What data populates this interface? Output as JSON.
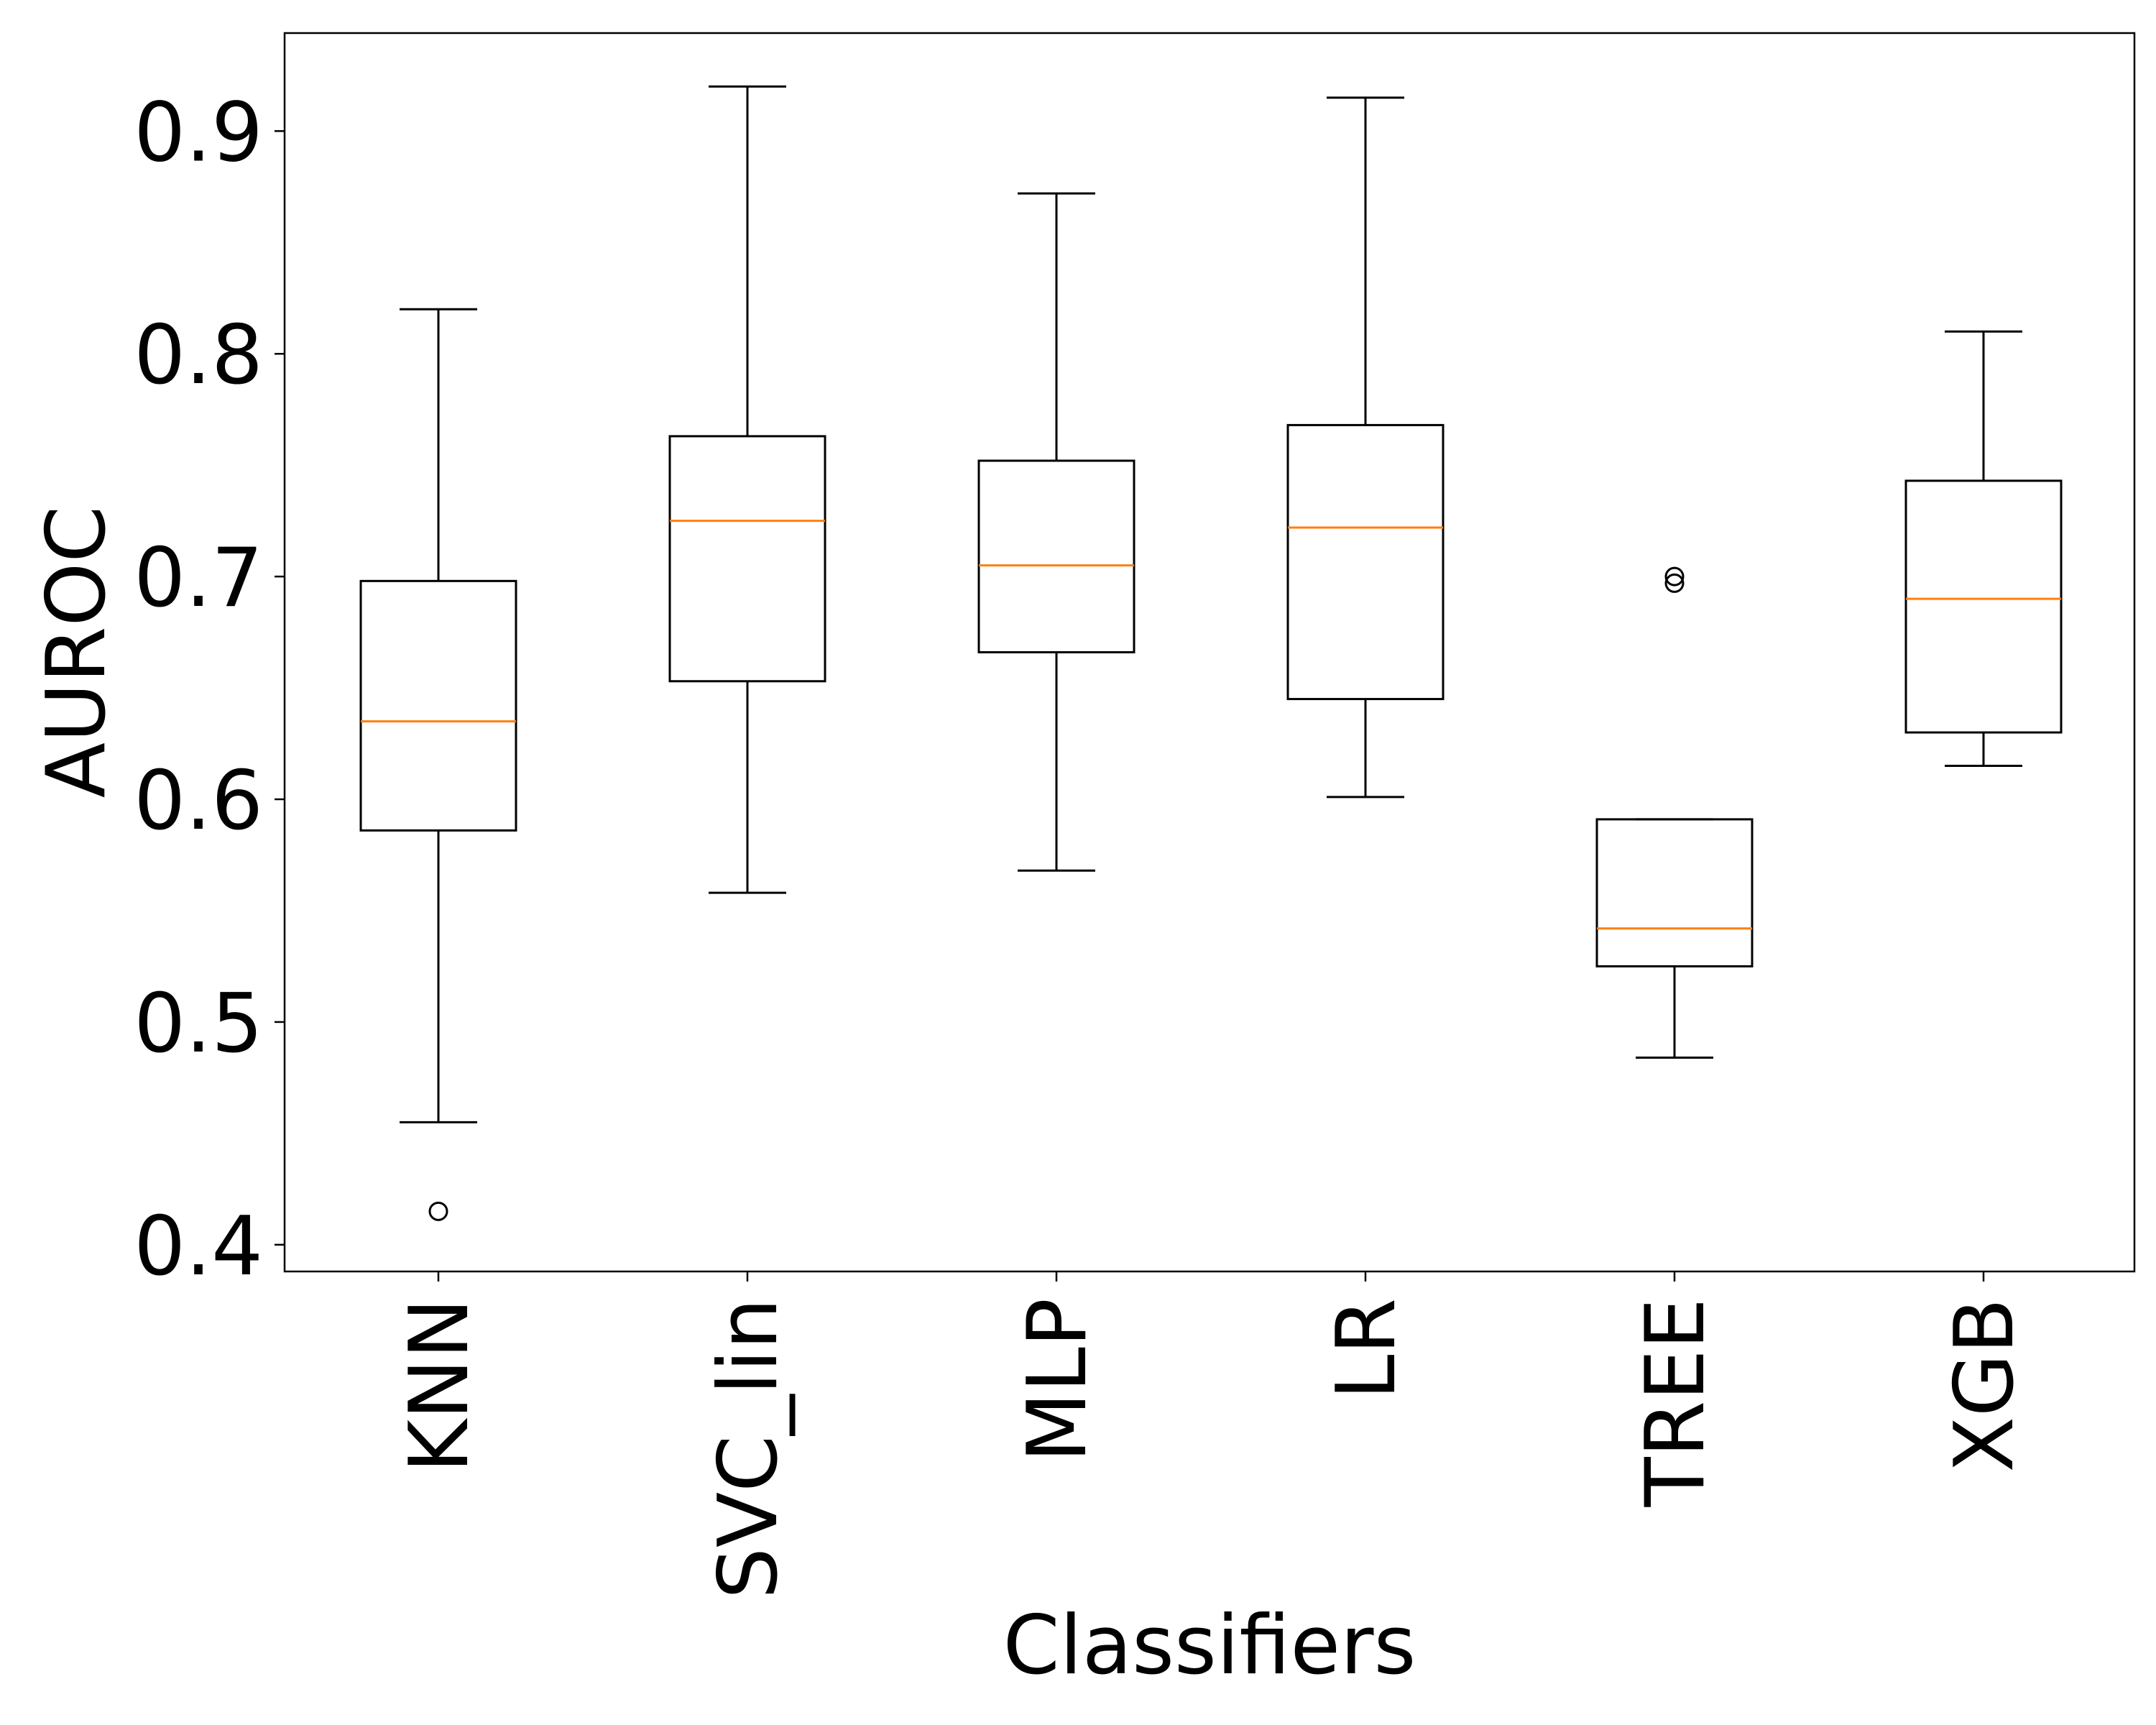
{
  "chart_data": {
    "type": "box",
    "xlabel": "Classifiers",
    "ylabel": "AUROC",
    "ylim": [
      0.388,
      0.944
    ],
    "yticks": [
      0.4,
      0.5,
      0.6,
      0.7,
      0.8,
      0.9
    ],
    "ytick_labels": [
      "0.4",
      "0.5",
      "0.6",
      "0.7",
      "0.8",
      "0.9"
    ],
    "grid": false,
    "categories": [
      "KNN",
      "SVC_lin",
      "MLP",
      "LR",
      "TREE",
      "XGB"
    ],
    "boxes": [
      {
        "label": "KNN",
        "whisker_low": 0.455,
        "q1": 0.586,
        "median": 0.635,
        "q3": 0.698,
        "whisker_high": 0.82,
        "outliers": [
          0.415
        ]
      },
      {
        "label": "SVC_lin",
        "whisker_low": 0.558,
        "q1": 0.653,
        "median": 0.725,
        "q3": 0.763,
        "whisker_high": 0.92,
        "outliers": []
      },
      {
        "label": "MLP",
        "whisker_low": 0.568,
        "q1": 0.666,
        "median": 0.705,
        "q3": 0.752,
        "whisker_high": 0.872,
        "outliers": []
      },
      {
        "label": "LR",
        "whisker_low": 0.601,
        "q1": 0.645,
        "median": 0.722,
        "q3": 0.768,
        "whisker_high": 0.915,
        "outliers": []
      },
      {
        "label": "TREE",
        "whisker_low": 0.484,
        "q1": 0.525,
        "median": 0.542,
        "q3": 0.591,
        "whisker_high": 0.591,
        "outliers": [
          0.697,
          0.7
        ]
      },
      {
        "label": "XGB",
        "whisker_low": 0.615,
        "q1": 0.63,
        "median": 0.69,
        "q3": 0.743,
        "whisker_high": 0.81,
        "outliers": []
      }
    ],
    "colors": {
      "box_edge": "#000000",
      "median": "#ff7f0e",
      "background": "#ffffff"
    }
  }
}
